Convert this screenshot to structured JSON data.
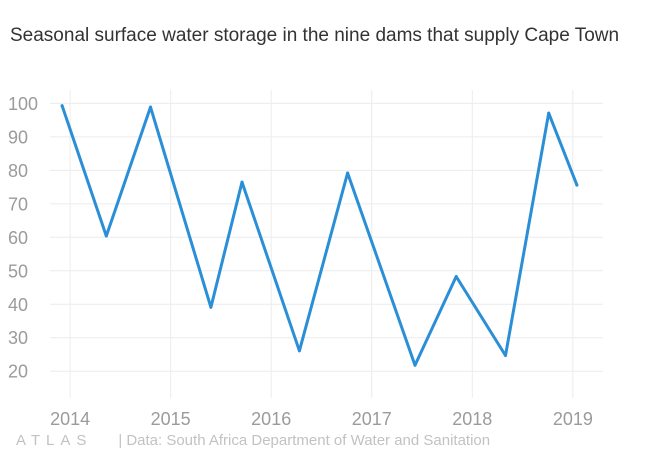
{
  "chart_data": {
    "type": "line",
    "title": "Seasonal surface water storage in the nine dams that supply Cape Town",
    "xlabel": "",
    "ylabel": "",
    "x_ticks": [
      "2014",
      "2015",
      "2016",
      "2017",
      "2018",
      "2019"
    ],
    "y_ticks": [
      "20",
      "30",
      "40",
      "50",
      "60",
      "70",
      "80",
      "90",
      "100"
    ],
    "xlim": [
      2013.8,
      2019.3
    ],
    "ylim": [
      12,
      104
    ],
    "grid": true,
    "series": [
      {
        "color": "#2a8fd6",
        "x": [
          2013.92,
          2014.36,
          2014.8,
          2015.4,
          2015.71,
          2016.28,
          2016.76,
          2017.43,
          2017.84,
          2018.33,
          2018.76,
          2019.04
        ],
        "y": [
          99.3,
          60.4,
          98.9,
          39.1,
          76.5,
          26.1,
          79.2,
          21.8,
          48.3,
          24.7,
          97.1,
          75.6
        ]
      }
    ]
  },
  "footer": {
    "logo": "ATLAS",
    "separator": "|",
    "source": "Data: South Africa Department of Water and Sanitation"
  }
}
